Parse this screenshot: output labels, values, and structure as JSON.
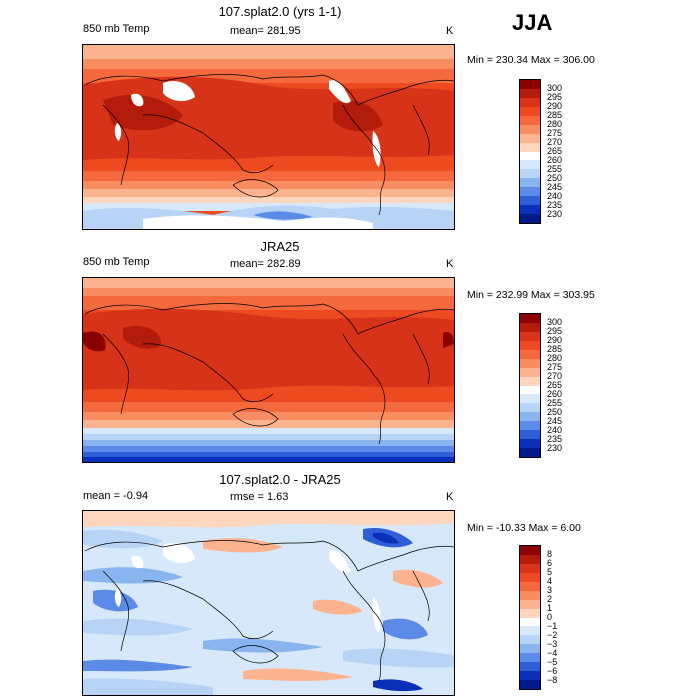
{
  "season": "JJA",
  "panels": [
    {
      "title": "107.splat2.0 (yrs 1-1)",
      "left_label": "850 mb Temp",
      "center_label": "mean= 281.95",
      "units": "K",
      "minmax": "Min = 230.34 Max = 306.00",
      "colorbar": {
        "labels": [
          "300",
          "295",
          "290",
          "285",
          "280",
          "275",
          "270",
          "265",
          "260",
          "255",
          "250",
          "245",
          "240",
          "235",
          "230"
        ],
        "colors": [
          "#8b0000",
          "#b31b0a",
          "#d63318",
          "#ee4a1f",
          "#f56a3c",
          "#f98d62",
          "#fcb38f",
          "#fdd6bd",
          "#ffffff",
          "#d6e8fa",
          "#b7d3f5",
          "#8ab4ef",
          "#5b8be6",
          "#2f5fd6",
          "#0a2fb8",
          "#001a8c"
        ]
      }
    },
    {
      "title": "JRA25",
      "left_label": "850 mb Temp",
      "center_label": "mean= 282.89",
      "units": "K",
      "minmax": "Min = 232.99 Max = 303.95",
      "colorbar": {
        "labels": [
          "300",
          "295",
          "290",
          "285",
          "280",
          "275",
          "270",
          "265",
          "260",
          "255",
          "250",
          "245",
          "240",
          "235",
          "230"
        ],
        "colors": [
          "#8b0000",
          "#b31b0a",
          "#d63318",
          "#ee4a1f",
          "#f56a3c",
          "#f98d62",
          "#fcb38f",
          "#fdd6bd",
          "#ffffff",
          "#d6e8fa",
          "#b7d3f5",
          "#8ab4ef",
          "#5b8be6",
          "#2f5fd6",
          "#0a2fb8",
          "#001a8c"
        ]
      }
    },
    {
      "title": "107.splat2.0 - JRA25",
      "left_label": "mean =   -0.94",
      "center_label": "rmse =    1.63",
      "units": "K",
      "minmax": "Min = -10.33 Max =    6.00",
      "colorbar": {
        "labels": [
          "8",
          "6",
          "5",
          "4",
          "3",
          "2",
          "1",
          "0",
          "−1",
          "−2",
          "−3",
          "−4",
          "−5",
          "−6",
          "−8"
        ],
        "colors": [
          "#8b0000",
          "#b31b0a",
          "#d63318",
          "#ee4a1f",
          "#f56a3c",
          "#f98d62",
          "#fcb38f",
          "#fdd6bd",
          "#ffffff",
          "#d6e8fa",
          "#b7d3f5",
          "#8ab4ef",
          "#5b8be6",
          "#2f5fd6",
          "#0a2fb8",
          "#001a8c"
        ]
      }
    }
  ]
}
